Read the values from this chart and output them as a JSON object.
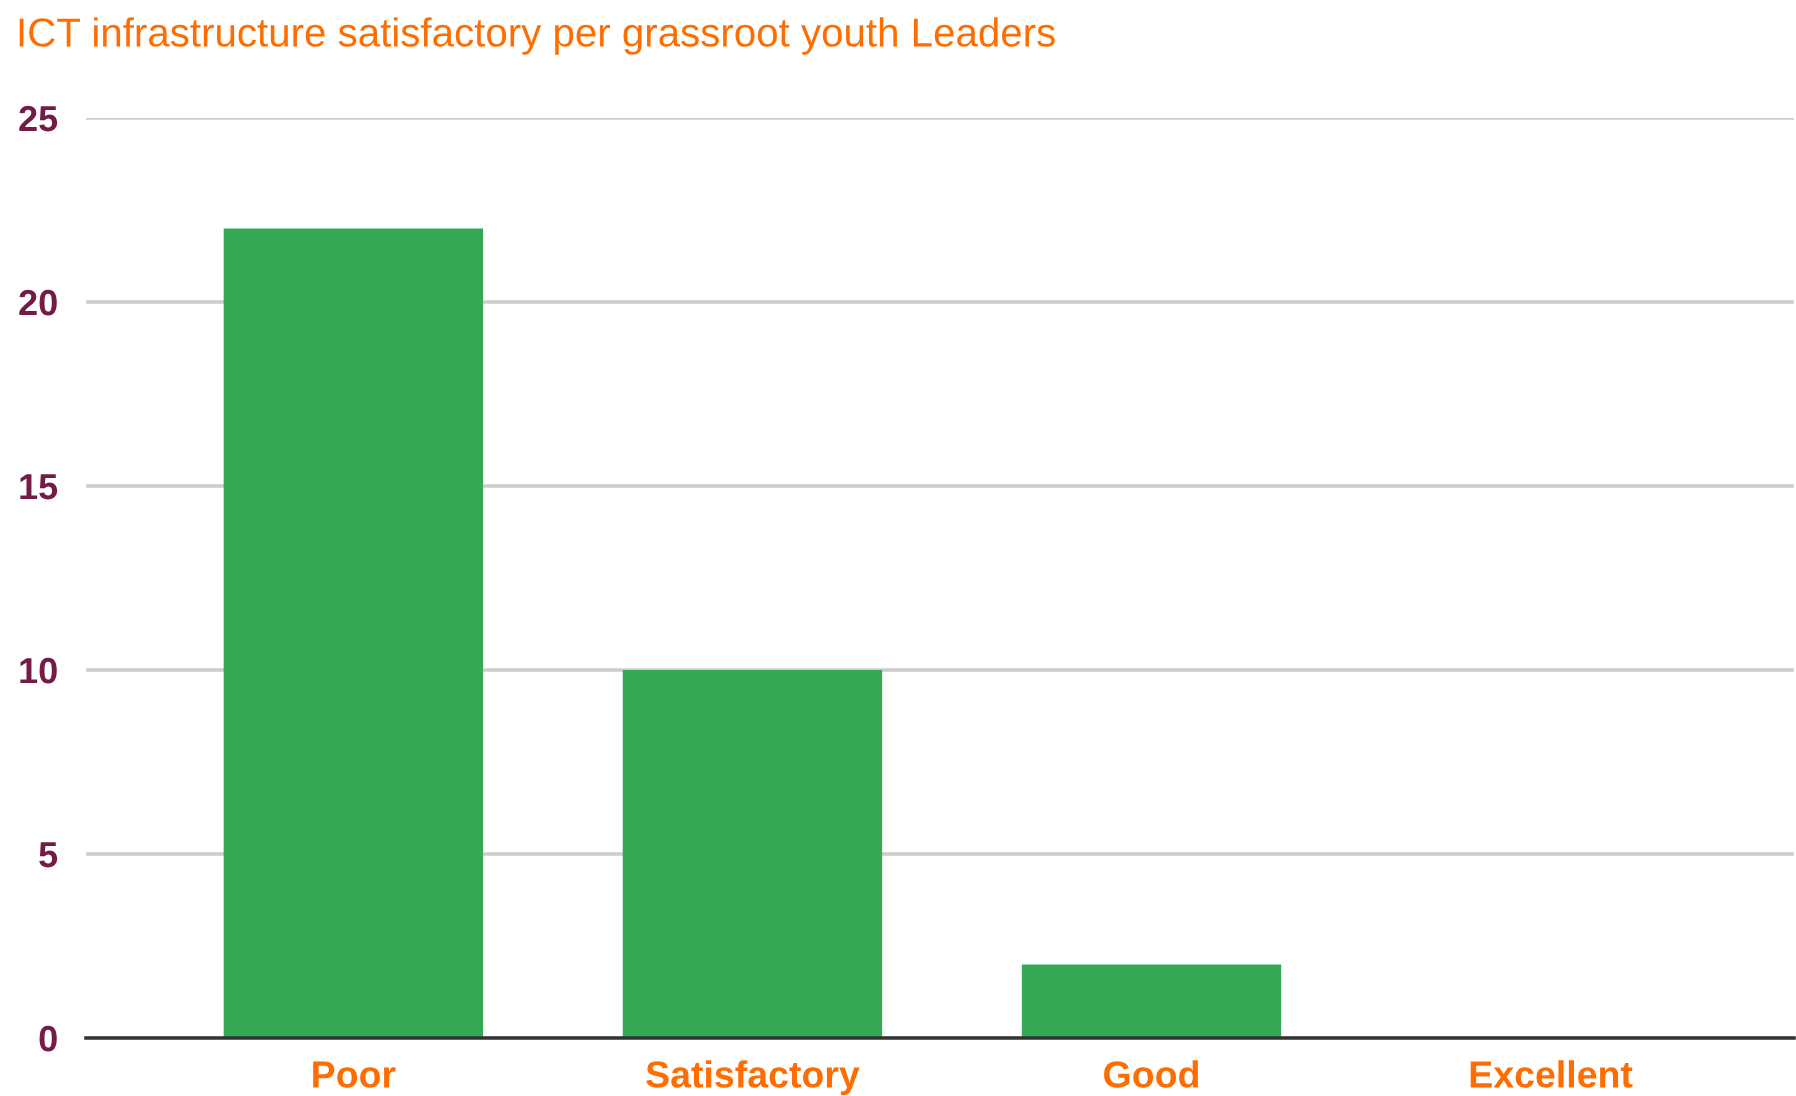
{
  "chart_data": {
    "type": "bar",
    "title": "ICT infrastructure satisfactory per grassroot youth Leaders",
    "categories": [
      "Poor",
      "Satisfactory",
      "Good",
      "Excellent"
    ],
    "values": [
      22,
      10,
      2,
      0
    ],
    "color": "#34a853",
    "ylim": [
      0,
      25
    ],
    "yticks": [
      0,
      5,
      10,
      15,
      20,
      25
    ],
    "grid": "y",
    "legend": false
  }
}
